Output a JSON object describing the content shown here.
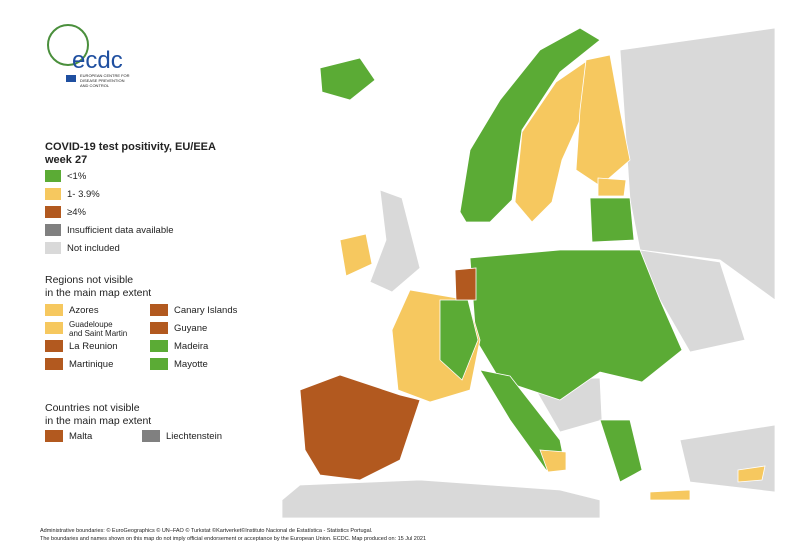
{
  "logo": {
    "name": "ecdc",
    "subtitle": [
      "EUROPEAN CENTRE FOR",
      "DISEASE PREVENTION",
      "AND CONTROL"
    ]
  },
  "legend": {
    "title": [
      "COVID-19 test positivity, EU/EEA",
      "week 27"
    ],
    "items": [
      {
        "label": "<1%",
        "color": "#5bab35"
      },
      {
        "label": "1- 3.9%",
        "color": "#f6c85f"
      },
      {
        "label": "≥4%",
        "color": "#b2591f"
      },
      {
        "label": "Insufficient data available",
        "color": "#808080"
      },
      {
        "label": "Not included",
        "color": "#d9d9d9"
      }
    ]
  },
  "regions": {
    "title": [
      "Regions not visible",
      "in the main map extent"
    ],
    "items": [
      {
        "label": "Azores",
        "color": "#f6c85f"
      },
      {
        "label": "Canary Islands",
        "color": "#b2591f"
      },
      {
        "label": "Guadeloupe\nand Saint Martin",
        "color": "#f6c85f"
      },
      {
        "label": "Guyane",
        "color": "#b2591f"
      },
      {
        "label": "La Reunion",
        "color": "#b2591f"
      },
      {
        "label": "Madeira",
        "color": "#5bab35"
      },
      {
        "label": "Martinique",
        "color": "#b2591f"
      },
      {
        "label": "Mayotte",
        "color": "#5bab35"
      }
    ]
  },
  "countries": {
    "title": [
      "Countries not visible",
      "in the main map extent"
    ],
    "items": [
      {
        "label": "Malta",
        "color": "#b2591f"
      },
      {
        "label": "Liechtenstein",
        "color": "#808080"
      }
    ]
  },
  "footer": [
    "Administrative boundaries: © EuroGeographics © UN–FAO © Turkstat ©Kartverket©Instituto Nacional de Estatística - Statistics Portugal.",
    "The boundaries and names shown on this map do not imply official endorsement or acceptance by the European Union. ECDC. Map produced on: 15 Jul 2021"
  ]
}
